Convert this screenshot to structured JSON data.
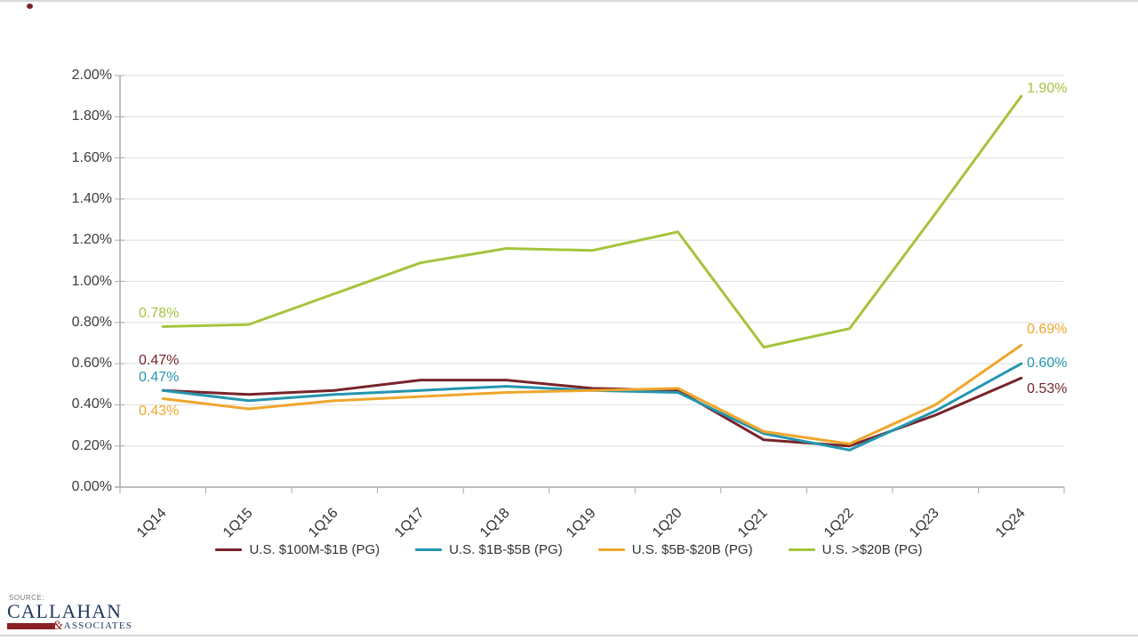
{
  "source": {
    "label": "SOURCE:",
    "brand_top": "CALLAHAN",
    "brand_amp": "&",
    "brand_bottom": "ASSOCIATES"
  },
  "chart_data": {
    "type": "line",
    "title": "",
    "xlabel": "",
    "ylabel": "",
    "categories": [
      "1Q14",
      "1Q15",
      "1Q16",
      "1Q17",
      "1Q18",
      "1Q19",
      "1Q20",
      "1Q21",
      "1Q22",
      "1Q23",
      "1Q24"
    ],
    "ylim": [
      0,
      2.0
    ],
    "ytick_step": 0.2,
    "ytick_labels": [
      "0.00%",
      "0.20%",
      "0.40%",
      "0.60%",
      "0.80%",
      "1.00%",
      "1.20%",
      "1.40%",
      "1.60%",
      "1.80%",
      "2.00%"
    ],
    "grid": true,
    "legend_position": "bottom",
    "colors": {
      "gridline": "#dedede",
      "axis": "#a8a8a8",
      "tick_text": "#3d3d3d"
    },
    "series": [
      {
        "name": "U.S. $100M-$1B (PG)",
        "color": "#77242b",
        "values": [
          0.47,
          0.45,
          0.47,
          0.52,
          0.52,
          0.48,
          0.47,
          0.23,
          0.2,
          0.35,
          0.53
        ],
        "first_label": "0.47%",
        "last_label": "0.53%"
      },
      {
        "name": "U.S. $1B-$5B (PG)",
        "color": "#2496b0",
        "values": [
          0.47,
          0.42,
          0.45,
          0.47,
          0.49,
          0.47,
          0.46,
          0.26,
          0.18,
          0.37,
          0.6
        ],
        "first_label": "0.47%",
        "last_label": "0.60%"
      },
      {
        "name": "U.S. $5B-$20B (PG)",
        "color": "#f0a62c",
        "values": [
          0.43,
          0.38,
          0.42,
          0.44,
          0.46,
          0.47,
          0.48,
          0.27,
          0.21,
          0.4,
          0.69
        ],
        "first_label": "0.43%",
        "last_label": "0.69%"
      },
      {
        "name": "U.S. >$20B (PG)",
        "color": "#a5c43c",
        "values": [
          0.78,
          0.79,
          0.94,
          1.09,
          1.16,
          1.15,
          1.24,
          0.68,
          0.77,
          1.33,
          1.9
        ],
        "first_label": "0.78%",
        "last_label": "1.90%"
      }
    ]
  }
}
